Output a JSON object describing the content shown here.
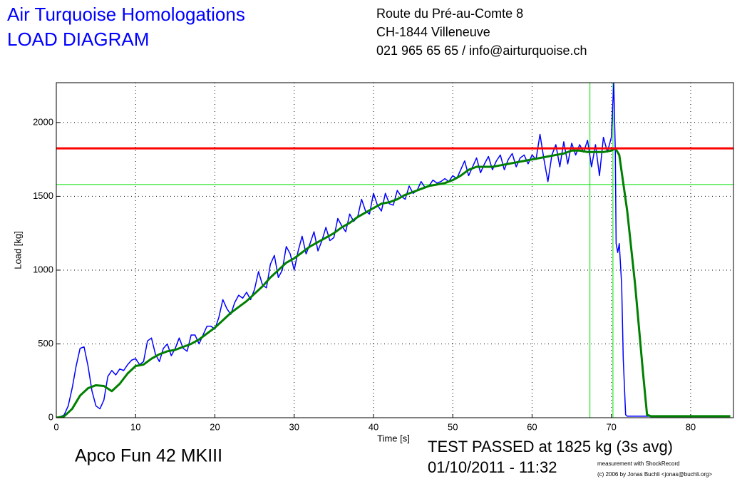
{
  "header": {
    "title": "Air Turquoise Homologations",
    "subtitle": "LOAD DIAGRAM",
    "address": [
      "Route du Pré-au-Comte 8",
      "CH-1844 Villeneuve",
      "021 965 65 65 / info@airturquoise.ch"
    ]
  },
  "footer": {
    "glider": "Apco Fun 42 MKIII",
    "result": "TEST PASSED at 1825 kg (3s avg)",
    "date": "01/10/2011 - 11:32",
    "credits": [
      "measurement with ShockRecord",
      "(c) 2006 by Jonas Buchli <jonas@buchli.org>"
    ]
  },
  "chart_data": {
    "type": "line",
    "x_label": "Time [s]",
    "y_label": "Load [kg]",
    "xlim": [
      0,
      85.4
    ],
    "ylim": [
      0,
      2270
    ],
    "xticks": [
      0,
      10,
      20,
      30,
      40,
      50,
      60,
      70,
      80
    ],
    "yticks": [
      0,
      500,
      1000,
      1500,
      2000
    ],
    "grid": true,
    "hlines": [
      {
        "value": 1825,
        "color": "#ff0000"
      },
      {
        "value": 1580,
        "color": "#00e000"
      }
    ],
    "vlines": [
      {
        "value": 67.3,
        "color": "#00e000"
      },
      {
        "value": 70.2,
        "color": "#00e000"
      }
    ],
    "series": [
      {
        "color": "#0000ff",
        "width": 1.5,
        "x": [
          0,
          0.5,
          1,
          1.5,
          2,
          2.5,
          3,
          3.5,
          4,
          4.5,
          5,
          5.5,
          6,
          6.5,
          7,
          7.5,
          8,
          8.5,
          9,
          9.5,
          10,
          10.5,
          11,
          11.5,
          12,
          12.5,
          13,
          13.5,
          14,
          14.5,
          15,
          15.5,
          16,
          16.5,
          17,
          17.5,
          18,
          18.5,
          19,
          19.5,
          20,
          20.5,
          21,
          21.5,
          22,
          22.5,
          23,
          23.5,
          24,
          24.5,
          25,
          25.5,
          26,
          26.5,
          27,
          27.5,
          28,
          28.5,
          29,
          29.5,
          30,
          30.5,
          31,
          31.5,
          32,
          32.5,
          33,
          33.5,
          34,
          34.5,
          35,
          35.5,
          36,
          36.5,
          37,
          37.5,
          38,
          38.5,
          39,
          39.5,
          40,
          40.5,
          41,
          41.5,
          42,
          42.5,
          43,
          43.5,
          44,
          44.5,
          45,
          45.5,
          46,
          46.5,
          47,
          47.5,
          48,
          48.5,
          49,
          49.5,
          50,
          50.5,
          51,
          51.5,
          52,
          52.5,
          53,
          53.5,
          54,
          54.5,
          55,
          55.5,
          56,
          56.5,
          57,
          57.5,
          58,
          58.5,
          59,
          59.5,
          60,
          60.5,
          61,
          61.5,
          62,
          62.5,
          63,
          63.5,
          64,
          64.5,
          65,
          65.5,
          66,
          66.5,
          67,
          67.5,
          68,
          68.5,
          69,
          69.5,
          70,
          70.3,
          70.5,
          70.6,
          70.8,
          71,
          71.3,
          71.5,
          71.8,
          72,
          85
        ],
        "values": [
          0,
          5,
          20,
          80,
          200,
          350,
          470,
          480,
          350,
          180,
          80,
          60,
          120,
          280,
          320,
          290,
          330,
          320,
          360,
          390,
          400,
          360,
          380,
          520,
          540,
          430,
          380,
          470,
          500,
          420,
          470,
          540,
          470,
          450,
          560,
          560,
          500,
          560,
          620,
          620,
          600,
          680,
          800,
          740,
          700,
          780,
          830,
          810,
          850,
          800,
          870,
          990,
          900,
          880,
          1040,
          1100,
          950,
          1000,
          1160,
          1110,
          1000,
          1130,
          1230,
          1110,
          1180,
          1260,
          1130,
          1200,
          1290,
          1200,
          1220,
          1350,
          1300,
          1260,
          1380,
          1330,
          1360,
          1480,
          1400,
          1380,
          1520,
          1440,
          1400,
          1520,
          1450,
          1440,
          1540,
          1500,
          1480,
          1570,
          1520,
          1540,
          1600,
          1560,
          1570,
          1610,
          1590,
          1600,
          1620,
          1600,
          1640,
          1620,
          1680,
          1740,
          1640,
          1700,
          1760,
          1660,
          1720,
          1770,
          1680,
          1740,
          1780,
          1680,
          1750,
          1790,
          1700,
          1760,
          1780,
          1720,
          1780,
          1750,
          1920,
          1750,
          1600,
          1780,
          1850,
          1700,
          1870,
          1720,
          1860,
          1780,
          1850,
          1800,
          1880,
          1700,
          1850,
          1640,
          1900,
          1800,
          1900,
          2270,
          1800,
          1180,
          1120,
          1180,
          900,
          400,
          20,
          10,
          10
        ]
      },
      {
        "color": "#008000",
        "width": 3,
        "x": [
          0,
          1,
          2,
          3,
          4,
          5,
          6,
          7,
          8,
          9,
          10,
          11,
          12,
          13,
          14,
          15,
          16,
          17,
          18,
          19,
          20,
          21,
          22,
          23,
          24,
          25,
          26,
          27,
          28,
          29,
          30,
          31,
          32,
          33,
          34,
          35,
          36,
          37,
          38,
          39,
          40,
          41,
          42,
          43,
          44,
          45,
          46,
          47,
          48,
          49,
          50,
          51,
          52,
          53,
          54,
          55,
          56,
          57,
          58,
          59,
          60,
          61,
          62,
          63,
          64,
          65,
          66,
          67,
          68,
          69,
          70,
          70.5,
          71,
          72,
          73,
          74,
          74.5,
          75,
          85
        ],
        "values": [
          0,
          10,
          60,
          150,
          200,
          220,
          215,
          180,
          230,
          300,
          350,
          360,
          400,
          430,
          450,
          460,
          480,
          500,
          530,
          570,
          610,
          660,
          710,
          750,
          790,
          840,
          890,
          950,
          1000,
          1050,
          1080,
          1120,
          1160,
          1190,
          1220,
          1250,
          1290,
          1320,
          1360,
          1390,
          1420,
          1450,
          1460,
          1480,
          1510,
          1530,
          1550,
          1570,
          1580,
          1590,
          1610,
          1640,
          1680,
          1700,
          1700,
          1700,
          1710,
          1720,
          1730,
          1740,
          1750,
          1760,
          1770,
          1780,
          1790,
          1810,
          1810,
          1800,
          1800,
          1800,
          1810,
          1825,
          1780,
          1400,
          900,
          300,
          20,
          10,
          10
        ]
      }
    ]
  }
}
